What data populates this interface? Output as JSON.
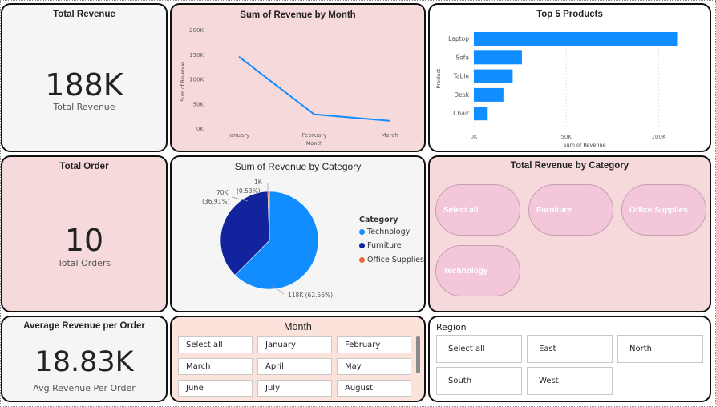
{
  "kpis": {
    "total_revenue": {
      "title": "Total Revenue",
      "value": "188K",
      "label": "Total Revenue"
    },
    "total_order": {
      "title": "Total Order",
      "value": "10",
      "label": "Total Orders"
    },
    "avg_revenue": {
      "title": "Average Revenue per Order",
      "value": "18.83K",
      "label": "Avg Revenue Per Order"
    }
  },
  "colors": {
    "accent": "#118dff",
    "furniture": "#12239e",
    "office": "#e66c37"
  },
  "line_chart": {
    "title": "Sum of Revenue by Month",
    "xlabel": "Month",
    "ylabel": "Sum of Revenue",
    "y_ticks": [
      "200K",
      "150K",
      "100K",
      "50K",
      "0K"
    ],
    "categories": [
      "January",
      "February",
      "March"
    ]
  },
  "bar_chart": {
    "title": "Top 5 Products",
    "xlabel": "Sum of Revenue",
    "ylabel": "Product",
    "x_ticks": [
      "0K",
      "50K",
      "100K"
    ],
    "categories": [
      "Laptop",
      "Sofa",
      "Table",
      "Desk",
      "Chair"
    ]
  },
  "pie_chart": {
    "title": "Sum of Revenue by Category",
    "legend_title": "Category",
    "legend": [
      "Technology",
      "Furniture",
      "Office Supplies"
    ],
    "labels": {
      "office": "1K",
      "office_pct": "(0.53%)",
      "furniture": "70K",
      "furniture_pct": "(36.91%)",
      "technology": "118K (62.56%)"
    }
  },
  "category_slicer": {
    "title": "Total Revenue by Category",
    "options": [
      "Select all",
      "Furniture",
      "Office Supplies",
      "Technology"
    ]
  },
  "month_slicer": {
    "title": "Month",
    "options": [
      "Select all",
      "January",
      "February",
      "March",
      "April",
      "May",
      "June",
      "July",
      "August"
    ]
  },
  "region_slicer": {
    "title": "Region",
    "options": [
      "Select all",
      "East",
      "North",
      "South",
      "West"
    ]
  },
  "chart_data": [
    {
      "type": "line",
      "title": "Sum of Revenue by Month",
      "xlabel": "Month",
      "ylabel": "Sum of Revenue",
      "categories": [
        "January",
        "February",
        "March"
      ],
      "values": [
        145000,
        28000,
        15000
      ],
      "ylim": [
        0,
        200000
      ]
    },
    {
      "type": "bar",
      "title": "Top 5 Products",
      "xlabel": "Sum of Revenue",
      "ylabel": "Product",
      "categories": [
        "Laptop",
        "Sofa",
        "Table",
        "Desk",
        "Chair"
      ],
      "values": [
        110000,
        26000,
        21000,
        16000,
        7500
      ],
      "xlim": [
        0,
        115000
      ]
    },
    {
      "type": "pie",
      "title": "Sum of Revenue by Category",
      "categories": [
        "Technology",
        "Furniture",
        "Office Supplies"
      ],
      "values": [
        118000,
        70000,
        1000
      ],
      "percentages": [
        62.56,
        36.91,
        0.53
      ]
    }
  ]
}
